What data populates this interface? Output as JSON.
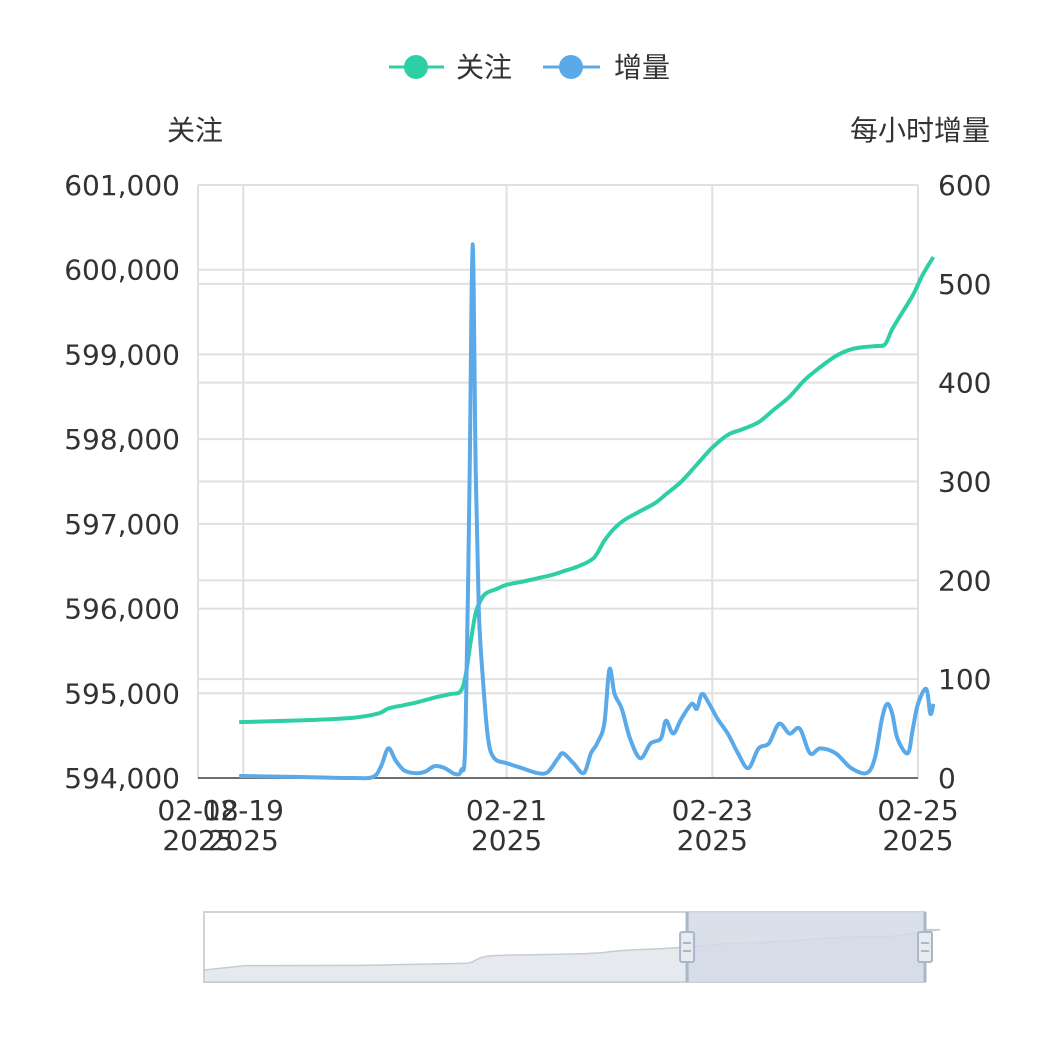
{
  "colors": {
    "follow": "#2ecfa5",
    "increment": "#5aa9e8",
    "grid": "#e0e0e0",
    "axis": "#6e6e6e",
    "text": "#333333",
    "zoom_fill": "#d3dbe6",
    "zoom_border": "#cfd4da",
    "zoom_handle": "#a8b7c9"
  },
  "chart_data": {
    "type": "line",
    "legend": {
      "position": "top-center",
      "items": [
        "关注",
        "增量"
      ]
    },
    "left_axis": {
      "name": "关注",
      "range": [
        594000,
        601000
      ],
      "ticks": [
        594000,
        595000,
        596000,
        597000,
        598000,
        599000,
        600000,
        601000
      ],
      "tick_labels": [
        "594,000",
        "595,000",
        "596,000",
        "597,000",
        "598,000",
        "599,000",
        "600,000",
        "601,000"
      ]
    },
    "right_axis": {
      "name": "每小时增量",
      "range": [
        0,
        600
      ],
      "ticks": [
        0,
        100,
        200,
        300,
        400,
        500,
        600
      ],
      "tick_labels": [
        "0",
        "100",
        "200",
        "300",
        "400",
        "500",
        "600"
      ]
    },
    "x_axis": {
      "type": "time",
      "start": "2025-02-18",
      "end": "2025-02-25",
      "tick_labels": [
        {
          "day": 0.0,
          "line1": "02-18",
          "line2": "2025"
        },
        {
          "day": 0.44,
          "line1": "02-19",
          "line2": "2025"
        },
        {
          "day": 3.0,
          "line1": "02-21",
          "line2": "2025"
        },
        {
          "day": 5.0,
          "line1": "02-23",
          "line2": "2025"
        },
        {
          "day": 7.0,
          "line1": "02-25",
          "line2": "2025"
        }
      ]
    },
    "grid": true,
    "series": [
      {
        "name": "关注",
        "axis": "left",
        "points": [
          [
            0.4,
            594660
          ],
          [
            1.0,
            594680
          ],
          [
            1.5,
            594710
          ],
          [
            1.75,
            594760
          ],
          [
            1.85,
            594820
          ],
          [
            2.0,
            594860
          ],
          [
            2.15,
            594900
          ],
          [
            2.3,
            594950
          ],
          [
            2.45,
            594990
          ],
          [
            2.55,
            595020
          ],
          [
            2.6,
            595200
          ],
          [
            2.65,
            595600
          ],
          [
            2.7,
            595950
          ],
          [
            2.75,
            596100
          ],
          [
            2.8,
            596180
          ],
          [
            2.9,
            596230
          ],
          [
            3.0,
            596280
          ],
          [
            3.2,
            596330
          ],
          [
            3.45,
            596400
          ],
          [
            3.55,
            596440
          ],
          [
            3.7,
            596500
          ],
          [
            3.85,
            596600
          ],
          [
            3.95,
            596800
          ],
          [
            4.05,
            596950
          ],
          [
            4.15,
            597050
          ],
          [
            4.3,
            597150
          ],
          [
            4.45,
            597250
          ],
          [
            4.55,
            597350
          ],
          [
            4.7,
            597500
          ],
          [
            4.85,
            597700
          ],
          [
            5.0,
            597900
          ],
          [
            5.15,
            598050
          ],
          [
            5.3,
            598120
          ],
          [
            5.45,
            598200
          ],
          [
            5.6,
            598350
          ],
          [
            5.75,
            598500
          ],
          [
            5.9,
            598700
          ],
          [
            6.05,
            598850
          ],
          [
            6.2,
            598980
          ],
          [
            6.35,
            599060
          ],
          [
            6.5,
            599090
          ],
          [
            6.6,
            599100
          ],
          [
            6.68,
            599120
          ],
          [
            6.75,
            599300
          ],
          [
            6.85,
            599500
          ],
          [
            6.95,
            599700
          ],
          [
            7.05,
            599950
          ],
          [
            7.15,
            600150
          ]
        ]
      },
      {
        "name": "增量",
        "axis": "right",
        "points": [
          [
            0.4,
            2
          ],
          [
            1.0,
            1
          ],
          [
            1.5,
            0
          ],
          [
            1.7,
            1
          ],
          [
            1.78,
            12
          ],
          [
            1.85,
            30
          ],
          [
            1.92,
            18
          ],
          [
            2.0,
            8
          ],
          [
            2.1,
            5
          ],
          [
            2.2,
            6
          ],
          [
            2.3,
            12
          ],
          [
            2.4,
            10
          ],
          [
            2.5,
            4
          ],
          [
            2.56,
            8
          ],
          [
            2.6,
            40
          ],
          [
            2.64,
            300
          ],
          [
            2.67,
            540
          ],
          [
            2.7,
            310
          ],
          [
            2.73,
            170
          ],
          [
            2.77,
            100
          ],
          [
            2.82,
            40
          ],
          [
            2.88,
            20
          ],
          [
            3.0,
            15
          ],
          [
            3.15,
            10
          ],
          [
            3.3,
            5
          ],
          [
            3.4,
            6
          ],
          [
            3.5,
            20
          ],
          [
            3.55,
            25
          ],
          [
            3.65,
            15
          ],
          [
            3.75,
            5
          ],
          [
            3.82,
            25
          ],
          [
            3.88,
            35
          ],
          [
            3.95,
            55
          ],
          [
            4.0,
            110
          ],
          [
            4.05,
            85
          ],
          [
            4.12,
            70
          ],
          [
            4.2,
            40
          ],
          [
            4.3,
            20
          ],
          [
            4.4,
            35
          ],
          [
            4.5,
            40
          ],
          [
            4.55,
            58
          ],
          [
            4.62,
            45
          ],
          [
            4.7,
            60
          ],
          [
            4.8,
            75
          ],
          [
            4.85,
            70
          ],
          [
            4.9,
            85
          ],
          [
            4.97,
            75
          ],
          [
            5.05,
            60
          ],
          [
            5.15,
            45
          ],
          [
            5.25,
            25
          ],
          [
            5.35,
            10
          ],
          [
            5.45,
            30
          ],
          [
            5.55,
            35
          ],
          [
            5.65,
            55
          ],
          [
            5.75,
            45
          ],
          [
            5.85,
            50
          ],
          [
            5.95,
            25
          ],
          [
            6.05,
            30
          ],
          [
            6.2,
            25
          ],
          [
            6.35,
            10
          ],
          [
            6.5,
            5
          ],
          [
            6.58,
            20
          ],
          [
            6.65,
            60
          ],
          [
            6.7,
            75
          ],
          [
            6.75,
            65
          ],
          [
            6.8,
            40
          ],
          [
            6.9,
            25
          ],
          [
            6.95,
            50
          ],
          [
            7.0,
            75
          ],
          [
            7.08,
            90
          ],
          [
            7.12,
            65
          ],
          [
            7.15,
            75
          ]
        ]
      }
    ]
  },
  "zoom": {
    "start_fraction": 0.67,
    "end_fraction": 1.0
  }
}
